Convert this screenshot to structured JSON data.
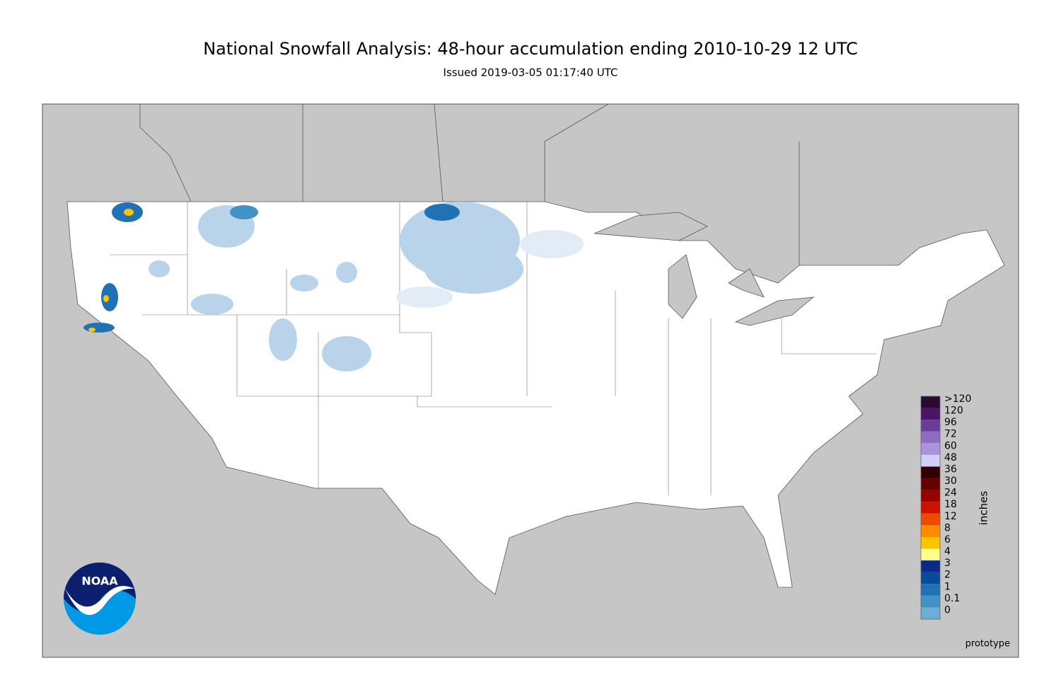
{
  "title": "National Snowfall Analysis: 48-hour accumulation ending 2010-10-29 12 UTC",
  "subtitle": "Issued 2019-03-05 01:17:40 UTC",
  "legend": {
    "label": "inches",
    "entries": [
      {
        "label": ">120",
        "color": "#2a0a33"
      },
      {
        "label": "120",
        "color": "#4b1466"
      },
      {
        "label": "96",
        "color": "#6a3d9a"
      },
      {
        "label": "72",
        "color": "#8d6cc4"
      },
      {
        "label": "60",
        "color": "#ab94dc"
      },
      {
        "label": "48",
        "color": "#d2d0fb"
      },
      {
        "label": "36",
        "color": "#330000"
      },
      {
        "label": "30",
        "color": "#660000"
      },
      {
        "label": "24",
        "color": "#990000"
      },
      {
        "label": "18",
        "color": "#cc1100"
      },
      {
        "label": "12",
        "color": "#ec4b00"
      },
      {
        "label": "8",
        "color": "#ff8c00"
      },
      {
        "label": "6",
        "color": "#ffc300"
      },
      {
        "label": "4",
        "color": "#ffff8a"
      },
      {
        "label": "3",
        "color": "#0b2a8c"
      },
      {
        "label": "2",
        "color": "#084a9c"
      },
      {
        "label": "1",
        "color": "#2171b5"
      },
      {
        "label": "0.1",
        "color": "#4292c6"
      },
      {
        "label": "0",
        "color": "#6baed6"
      }
    ],
    "base_colors": [
      "#b9d4ea",
      "#e2ecf6",
      "#ffffff"
    ]
  },
  "logo": "NOAA",
  "footer": "prototype"
}
